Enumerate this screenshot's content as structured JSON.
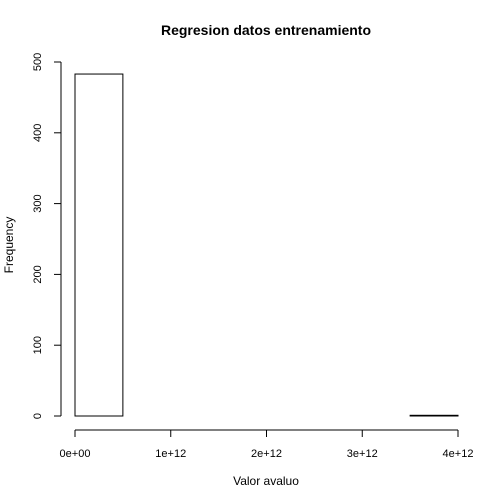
{
  "chart_data": {
    "type": "bar",
    "subtype": "histogram",
    "title": "Regresion datos entrenamiento",
    "xlabel": "Valor avaluo",
    "ylabel": "Frequency",
    "bins": [
      {
        "start": 0,
        "end": 500000000000,
        "count": 483
      },
      {
        "start": 500000000000,
        "end": 1000000000000,
        "count": 0
      },
      {
        "start": 1000000000000,
        "end": 1500000000000,
        "count": 0
      },
      {
        "start": 1500000000000,
        "end": 2000000000000,
        "count": 0
      },
      {
        "start": 2000000000000,
        "end": 2500000000000,
        "count": 0
      },
      {
        "start": 2500000000000,
        "end": 3000000000000,
        "count": 0
      },
      {
        "start": 3000000000000,
        "end": 3500000000000,
        "count": 0
      },
      {
        "start": 3500000000000,
        "end": 4000000000000,
        "count": 1
      }
    ],
    "xlim": [
      0,
      4000000000000
    ],
    "ylim": [
      0,
      500
    ],
    "xticks": [
      {
        "value": 0,
        "label": "0e+00"
      },
      {
        "value": 1000000000000,
        "label": "1e+12"
      },
      {
        "value": 2000000000000,
        "label": "2e+12"
      },
      {
        "value": 3000000000000,
        "label": "3e+12"
      },
      {
        "value": 4000000000000,
        "label": "4e+12"
      }
    ],
    "yticks": [
      {
        "value": 0,
        "label": "0"
      },
      {
        "value": 100,
        "label": "100"
      },
      {
        "value": 200,
        "label": "200"
      },
      {
        "value": 300,
        "label": "300"
      },
      {
        "value": 400,
        "label": "400"
      },
      {
        "value": 500,
        "label": "500"
      }
    ],
    "grid": false,
    "colors": {
      "bar_fill": "#ffffff",
      "bar_stroke": "#000000",
      "axis": "#000000"
    }
  }
}
